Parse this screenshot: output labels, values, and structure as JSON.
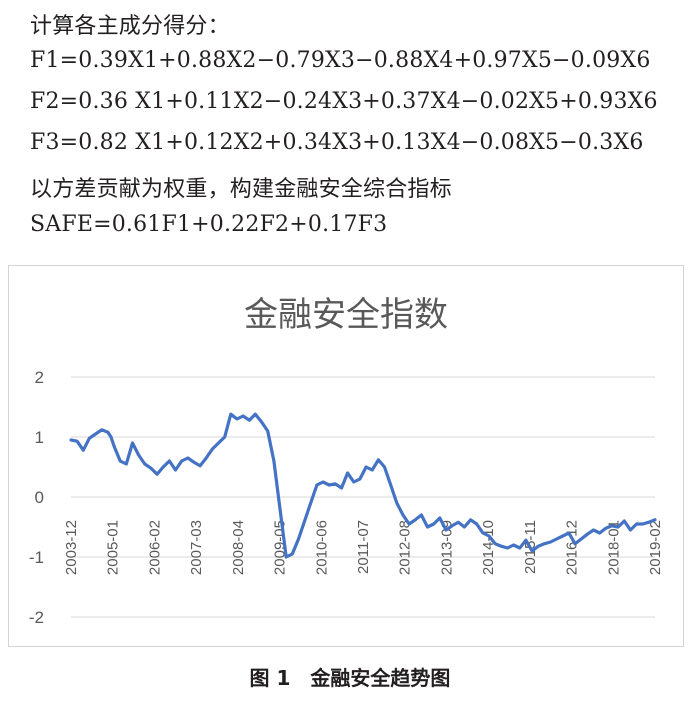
{
  "text_lines": [
    "计算各主成分得分：",
    "F1=0.39X1+0.88X2−0.79X3−0.88X4+0.97X5−0.09X6",
    "F2=0.36 X1+0.11X2−0.24X3+0.37X4−0.02X5+0.93X6",
    "F3=0.82 X1+0.12X2+0.34X3+0.13X4−0.08X5−0.3X6",
    "以方差贡献为权重，构建金融安全综合指标",
    "SAFE=0.61F1+0.22F2+0.17F3"
  ],
  "figure_caption": "图 1　金融安全趋势图",
  "chart_data": {
    "type": "line",
    "title": "金融安全指数",
    "xlabel": "",
    "ylabel": "",
    "ylim": [
      -2,
      2
    ],
    "y_ticks": [
      2,
      1,
      0,
      -1,
      -2
    ],
    "x_tick_labels": [
      "2003-12",
      "2005-01",
      "2006-02",
      "2007-03",
      "2008-04",
      "2009-05",
      "2010-06",
      "2011-07",
      "2012-08",
      "2013-09",
      "2014-10",
      "2015-11",
      "2016-12",
      "2018-01",
      "2019-02"
    ],
    "x_range": [
      0,
      190
    ],
    "grid": true,
    "line_color": "#4472c4",
    "series": [
      {
        "name": "",
        "x": [
          0,
          2,
          4,
          6,
          8,
          10,
          12,
          13,
          14,
          16,
          18,
          20,
          22,
          24,
          26,
          28,
          30,
          32,
          34,
          36,
          38,
          40,
          42,
          44,
          46,
          48,
          50,
          52,
          54,
          56,
          58,
          60,
          62,
          64,
          66,
          68,
          70,
          72,
          74,
          76,
          78,
          80,
          82,
          84,
          86,
          88,
          90,
          92,
          94,
          96,
          98,
          100,
          102,
          104,
          106,
          108,
          110,
          112,
          114,
          116,
          118,
          120,
          122,
          124,
          126,
          128,
          130,
          132,
          134,
          136,
          138,
          140,
          142,
          144,
          146,
          148,
          150,
          152,
          154,
          156,
          158,
          160,
          162,
          164,
          166,
          168,
          170,
          172,
          174,
          176,
          178,
          180,
          182,
          184,
          186,
          188,
          190
        ],
        "values": [
          0.95,
          0.93,
          0.78,
          0.98,
          1.05,
          1.12,
          1.08,
          1.0,
          0.85,
          0.6,
          0.55,
          0.9,
          0.7,
          0.55,
          0.48,
          0.38,
          0.5,
          0.6,
          0.45,
          0.6,
          0.65,
          0.58,
          0.52,
          0.65,
          0.8,
          0.9,
          1.0,
          1.38,
          1.3,
          1.35,
          1.28,
          1.38,
          1.25,
          1.1,
          0.6,
          -0.2,
          -1.0,
          -0.95,
          -0.7,
          -0.4,
          -0.1,
          0.2,
          0.25,
          0.2,
          0.22,
          0.15,
          0.4,
          0.25,
          0.3,
          0.5,
          0.45,
          0.62,
          0.5,
          0.2,
          -0.1,
          -0.3,
          -0.45,
          -0.38,
          -0.3,
          -0.5,
          -0.45,
          -0.35,
          -0.55,
          -0.48,
          -0.42,
          -0.5,
          -0.38,
          -0.45,
          -0.6,
          -0.65,
          -0.78,
          -0.82,
          -0.85,
          -0.8,
          -0.85,
          -0.72,
          -0.9,
          -0.82,
          -0.78,
          -0.75,
          -0.7,
          -0.65,
          -0.6,
          -0.78,
          -0.7,
          -0.62,
          -0.55,
          -0.6,
          -0.52,
          -0.48,
          -0.5,
          -0.4,
          -0.55,
          -0.45,
          -0.45,
          -0.42,
          -0.38
        ]
      }
    ]
  }
}
